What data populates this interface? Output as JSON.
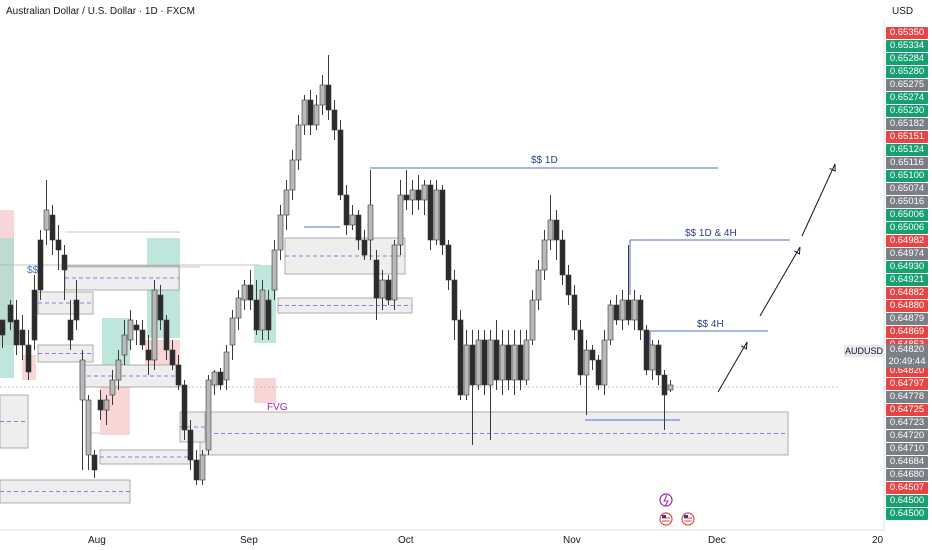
{
  "header": {
    "title": "Australian Dollar / U.S. Dollar · 1D · FXCM",
    "currency": "USD"
  },
  "colors": {
    "up_body": "#b9b9b9",
    "down_body": "#2b2b2b",
    "wick": "#3a3a3a",
    "line": "#4c6fd1",
    "zone_fill": "#eeeeef",
    "zone_border": "#9b9b9b",
    "mid_dash": "#8e4ad6",
    "teal": "#a8ddd0",
    "pink": "#f6c8c8",
    "fvg_label": "#9c27b0",
    "arrow": "#131722",
    "price_red": "#e64545",
    "price_green": "#16a071",
    "price_grey": "#7c7e85"
  },
  "chart_data": {
    "type": "candlestick",
    "symbol": "AUDUSD",
    "x_tick_labels": [
      "Aug",
      "Sep",
      "Oct",
      "Nov",
      "Dec",
      "20"
    ],
    "price_labels": [
      {
        "text": "0.65350",
        "color": "red"
      },
      {
        "text": "0.65334",
        "color": "green"
      },
      {
        "text": "0.65284",
        "color": "green"
      },
      {
        "text": "0.65280",
        "color": "green"
      },
      {
        "text": "0.65275",
        "color": "grey"
      },
      {
        "text": "0.65274",
        "color": "green"
      },
      {
        "text": "0.65230",
        "color": "green"
      },
      {
        "text": "0.65182",
        "color": "grey"
      },
      {
        "text": "0.65151",
        "color": "red"
      },
      {
        "text": "0.65124",
        "color": "green"
      },
      {
        "text": "0.65116",
        "color": "grey"
      },
      {
        "text": "0.65100",
        "color": "green"
      },
      {
        "text": "0.65074",
        "color": "grey"
      },
      {
        "text": "0.65016",
        "color": "grey"
      },
      {
        "text": "0.65006",
        "color": "green"
      },
      {
        "text": "0.65006",
        "color": "green"
      },
      {
        "text": "0.64982",
        "color": "red"
      },
      {
        "text": "0.64974",
        "color": "grey"
      },
      {
        "text": "0.64930",
        "color": "green"
      },
      {
        "text": "0.64921",
        "color": "green"
      },
      {
        "text": "0.64882",
        "color": "red"
      },
      {
        "text": "0.64880",
        "color": "red"
      },
      {
        "text": "0.64879",
        "color": "grey"
      },
      {
        "text": "0.64869",
        "color": "red"
      },
      {
        "text": "0.64853",
        "color": "red"
      },
      {
        "text": "0.64820",
        "color": "red"
      },
      {
        "text": "0.64820",
        "color": "red"
      },
      {
        "text": "0.64797",
        "color": "red"
      },
      {
        "text": "0.64778",
        "color": "grey"
      },
      {
        "text": "0.64725",
        "color": "red"
      },
      {
        "text": "0.64723",
        "color": "grey"
      },
      {
        "text": "0.64720",
        "color": "grey"
      },
      {
        "text": "0.64710",
        "color": "grey"
      },
      {
        "text": "0.64684",
        "color": "grey"
      },
      {
        "text": "0.64680",
        "color": "grey"
      },
      {
        "text": "0.64507",
        "color": "red"
      },
      {
        "text": "0.64500",
        "color": "green"
      },
      {
        "text": "0.64500",
        "color": "green"
      }
    ],
    "current": {
      "symbol_tag": "AUDUSD",
      "price": "0.64820",
      "countdown": "20:49:44"
    },
    "annotations": {
      "liquidity_1d": "$$ 1D",
      "liquidity_1d_4h": "$$ 1D & 4H",
      "liquidity_4h": "$$ 4H",
      "liquidity_small": "$$",
      "fvg": "FVG"
    },
    "candles": [
      [
        0,
        320,
        335,
        322,
        348
      ],
      [
        8,
        305,
        322,
        300,
        330
      ],
      [
        14,
        320,
        345,
        300,
        355
      ],
      [
        20,
        330,
        345,
        315,
        360
      ],
      [
        26,
        345,
        372,
        330,
        380
      ],
      [
        32,
        290,
        340,
        275,
        350
      ],
      [
        38,
        240,
        290,
        230,
        300
      ],
      [
        44,
        230,
        210,
        180,
        245
      ],
      [
        50,
        215,
        240,
        205,
        255
      ],
      [
        56,
        240,
        250,
        225,
        270
      ],
      [
        62,
        255,
        270,
        245,
        300
      ],
      [
        68,
        320,
        340,
        300,
        350
      ],
      [
        74,
        300,
        320,
        280,
        330
      ],
      [
        80,
        400,
        360,
        350,
        470
      ],
      [
        86,
        455,
        400,
        395,
        470
      ],
      [
        92,
        455,
        470,
        450,
        478
      ],
      [
        98,
        400,
        410,
        390,
        420
      ],
      [
        104,
        410,
        400,
        395,
        425
      ],
      [
        110,
        395,
        380,
        370,
        405
      ],
      [
        116,
        380,
        360,
        350,
        390
      ],
      [
        122,
        355,
        335,
        320,
        365
      ],
      [
        128,
        340,
        320,
        310,
        350
      ],
      [
        134,
        325,
        330,
        320,
        345
      ],
      [
        140,
        330,
        345,
        320,
        350
      ],
      [
        146,
        350,
        360,
        335,
        375
      ],
      [
        152,
        360,
        290,
        280,
        370
      ],
      [
        158,
        295,
        320,
        285,
        330
      ],
      [
        164,
        320,
        350,
        315,
        360
      ],
      [
        170,
        350,
        365,
        340,
        370
      ],
      [
        176,
        365,
        385,
        355,
        390
      ],
      [
        182,
        385,
        430,
        380,
        440
      ],
      [
        188,
        430,
        460,
        420,
        470
      ],
      [
        194,
        460,
        480,
        450,
        485
      ],
      [
        200,
        480,
        455,
        450,
        485
      ],
      [
        206,
        450,
        380,
        375,
        455
      ],
      [
        212,
        385,
        372,
        370,
        395
      ],
      [
        218,
        372,
        385,
        368,
        390
      ],
      [
        224,
        380,
        352,
        345,
        390
      ],
      [
        230,
        345,
        318,
        310,
        360
      ],
      [
        236,
        318,
        298,
        290,
        330
      ],
      [
        242,
        300,
        285,
        280,
        310
      ],
      [
        248,
        285,
        300,
        270,
        310
      ],
      [
        254,
        300,
        330,
        280,
        335
      ],
      [
        260,
        330,
        290,
        280,
        340
      ],
      [
        266,
        300,
        330,
        290,
        340
      ],
      [
        272,
        290,
        250,
        240,
        300
      ],
      [
        278,
        250,
        215,
        205,
        260
      ],
      [
        284,
        215,
        190,
        180,
        230
      ],
      [
        290,
        190,
        160,
        150,
        200
      ],
      [
        296,
        160,
        125,
        115,
        170
      ],
      [
        302,
        125,
        100,
        95,
        135
      ],
      [
        308,
        100,
        125,
        90,
        135
      ],
      [
        314,
        125,
        105,
        95,
        130
      ],
      [
        320,
        105,
        85,
        75,
        115
      ],
      [
        326,
        85,
        110,
        55,
        120
      ],
      [
        332,
        110,
        130,
        100,
        140
      ],
      [
        338,
        130,
        195,
        120,
        200
      ],
      [
        344,
        195,
        225,
        185,
        235
      ],
      [
        350,
        225,
        215,
        205,
        230
      ],
      [
        356,
        215,
        240,
        210,
        250
      ],
      [
        362,
        240,
        255,
        230,
        260
      ],
      [
        368,
        240,
        205,
        170,
        260
      ],
      [
        374,
        260,
        298,
        250,
        320
      ],
      [
        380,
        298,
        280,
        270,
        310
      ],
      [
        386,
        280,
        300,
        275,
        305
      ],
      [
        392,
        300,
        245,
        240,
        310
      ],
      [
        398,
        245,
        195,
        180,
        255
      ],
      [
        404,
        195,
        200,
        170,
        210
      ],
      [
        410,
        200,
        190,
        180,
        215
      ],
      [
        416,
        190,
        200,
        175,
        210
      ],
      [
        422,
        200,
        185,
        180,
        215
      ],
      [
        428,
        185,
        240,
        180,
        250
      ],
      [
        434,
        240,
        190,
        180,
        245
      ],
      [
        440,
        190,
        245,
        185,
        255
      ],
      [
        446,
        245,
        280,
        240,
        290
      ],
      [
        452,
        280,
        320,
        270,
        340
      ],
      [
        458,
        320,
        395,
        310,
        400
      ],
      [
        464,
        395,
        345,
        330,
        400
      ],
      [
        470,
        345,
        385,
        330,
        445
      ],
      [
        476,
        385,
        340,
        330,
        390
      ],
      [
        482,
        340,
        385,
        330,
        395
      ],
      [
        488,
        385,
        340,
        330,
        440
      ],
      [
        494,
        340,
        380,
        320,
        390
      ],
      [
        500,
        380,
        345,
        330,
        395
      ],
      [
        506,
        345,
        380,
        330,
        390
      ],
      [
        512,
        380,
        345,
        330,
        395
      ],
      [
        518,
        345,
        380,
        330,
        390
      ],
      [
        524,
        380,
        340,
        330,
        385
      ],
      [
        530,
        340,
        300,
        290,
        345
      ],
      [
        536,
        300,
        270,
        260,
        310
      ],
      [
        542,
        270,
        240,
        230,
        280
      ],
      [
        548,
        240,
        220,
        195,
        250
      ],
      [
        554,
        220,
        240,
        210,
        260
      ],
      [
        560,
        240,
        275,
        230,
        285
      ],
      [
        566,
        275,
        295,
        265,
        305
      ],
      [
        572,
        295,
        330,
        285,
        340
      ],
      [
        578,
        330,
        375,
        320,
        385
      ],
      [
        584,
        375,
        350,
        340,
        415
      ],
      [
        590,
        350,
        360,
        345,
        370
      ],
      [
        596,
        360,
        385,
        355,
        390
      ],
      [
        602,
        385,
        340,
        330,
        395
      ],
      [
        608,
        340,
        305,
        300,
        345
      ],
      [
        614,
        305,
        320,
        295,
        325
      ],
      [
        620,
        320,
        300,
        290,
        330
      ],
      [
        626,
        300,
        320,
        245,
        325
      ],
      [
        632,
        320,
        300,
        290,
        330
      ],
      [
        638,
        300,
        330,
        295,
        340
      ],
      [
        644,
        330,
        370,
        325,
        375
      ],
      [
        650,
        370,
        345,
        340,
        380
      ],
      [
        656,
        345,
        375,
        340,
        385
      ],
      [
        662,
        375,
        395,
        370,
        430
      ],
      [
        668,
        390,
        385,
        380,
        392
      ]
    ]
  }
}
